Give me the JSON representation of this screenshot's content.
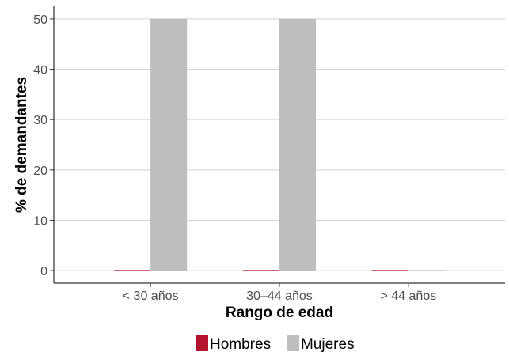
{
  "chart_data": {
    "type": "bar",
    "title": "",
    "xlabel": "Rango de edad",
    "ylabel": "% de demandantes",
    "categories": [
      "< 30 años",
      "30–44 años",
      "> 44 años"
    ],
    "series": [
      {
        "name": "Hombres",
        "values": [
          0,
          0,
          0
        ],
        "color": "#b5122e"
      },
      {
        "name": "Mujeres",
        "values": [
          50,
          50,
          0
        ],
        "color": "#bebebe"
      }
    ],
    "ylim": [
      -2.5,
      52.5
    ],
    "yticks": [
      0,
      10,
      20,
      30,
      40,
      50
    ],
    "grid": true,
    "legend_position": "bottom"
  }
}
